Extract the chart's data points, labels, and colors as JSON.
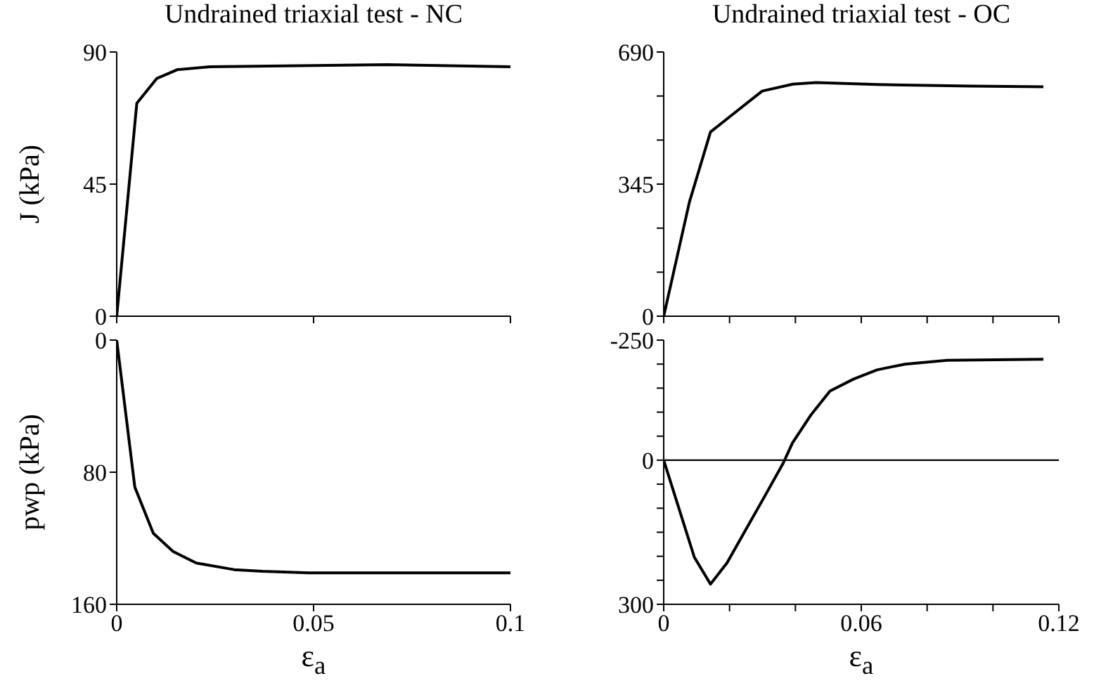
{
  "chart_data": [
    {
      "type": "line",
      "title": "Undrained triaxial test - NC",
      "ylabel": "J (kPa)",
      "xlim": [
        0,
        0.1
      ],
      "xticks": [
        0,
        {
          "value": 0.05,
          "label": null
        },
        {
          "value": 0.1,
          "label": null
        }
      ],
      "ylim": [
        0,
        90
      ],
      "yticks": [
        0,
        45,
        90
      ],
      "tick_labels": "y",
      "series": [
        {
          "color": "#000000",
          "x": [
            0,
            0.0051,
            0.0102,
            0.0154,
            0.0237,
            0.0687,
            0.1
          ],
          "values": [
            0,
            72.5,
            81,
            84,
            85,
            85.7,
            85
          ]
        }
      ]
    },
    {
      "type": "line",
      "title": "Undrained triaxial test - OC",
      "xlim": [
        0,
        0.12
      ],
      "xticks": [
        0,
        {
          "value": 0.02,
          "label": null
        },
        {
          "value": 0.04,
          "label": null
        },
        {
          "value": 0.06,
          "label": null
        },
        {
          "value": 0.08,
          "label": null
        },
        {
          "value": 0.1,
          "label": null
        },
        {
          "value": 0.12,
          "label": null
        }
      ],
      "ylim": [
        0,
        690
      ],
      "yticks": [
        0,
        {
          "value": 115,
          "label": null
        },
        {
          "value": 230,
          "label": null
        },
        345,
        {
          "value": 460,
          "label": null
        },
        {
          "value": 575,
          "label": null
        },
        690
      ],
      "tick_labels": "y",
      "series": [
        {
          "color": "#000000",
          "x": [
            0,
            0.0078,
            0.0142,
            0.0221,
            0.0299,
            0.0392,
            0.0463,
            0.0648,
            0.0932,
            0.1153
          ],
          "values": [
            0,
            298,
            481,
            535,
            588,
            606,
            610,
            605,
            601,
            599
          ]
        }
      ]
    },
    {
      "type": "line",
      "xlabel": "ε$_{a}$",
      "ylabel": "pwp (kPa)",
      "xlim": [
        0,
        0.1
      ],
      "xticks": [
        0,
        0.05,
        0.1
      ],
      "ylim": [
        160,
        0
      ],
      "yticks": [
        0,
        80,
        160
      ],
      "series": [
        {
          "color": "#000000",
          "x": [
            0,
            0.0046,
            0.0093,
            0.0143,
            0.0202,
            0.0298,
            0.037,
            0.0488,
            0.1
          ],
          "values": [
            0,
            89,
            117,
            128,
            135,
            139,
            140,
            141,
            141
          ]
        }
      ]
    },
    {
      "type": "line",
      "xlabel": "ε$_{a}$",
      "xlim": [
        0,
        0.12
      ],
      "xticks": [
        0,
        {
          "value": 0.02,
          "label": null
        },
        {
          "value": 0.04,
          "label": null
        },
        0.06,
        {
          "value": 0.08,
          "label": null
        },
        {
          "value": 0.1,
          "label": null
        },
        0.12
      ],
      "ylim": [
        300,
        -250
      ],
      "yticks": [
        -250,
        {
          "value": -200,
          "label": null
        },
        {
          "value": -150,
          "label": null
        },
        {
          "value": -100,
          "label": null
        },
        {
          "value": -50,
          "label": null
        },
        0,
        {
          "value": 50,
          "label": null
        },
        {
          "value": 100,
          "label": null
        },
        {
          "value": 150,
          "label": null
        },
        {
          "value": 200,
          "label": null
        },
        {
          "value": 250,
          "label": null
        },
        300
      ],
      "ref_lines": [
        {
          "axis": "y",
          "value": 0,
          "color": "#000000"
        }
      ],
      "series": [
        {
          "color": "#000000",
          "x": [
            0,
            0.0093,
            0.0142,
            0.0192,
            0.0249,
            0.0306,
            0.0363,
            0.0391,
            0.0448,
            0.0505,
            0.0577,
            0.0648,
            0.0733,
            0.0861,
            0.1153
          ],
          "values": [
            0,
            202,
            258,
            214,
            145,
            76,
            6,
            -36,
            -95,
            -144,
            -169,
            -188,
            -200,
            -208,
            -210
          ]
        }
      ]
    }
  ]
}
